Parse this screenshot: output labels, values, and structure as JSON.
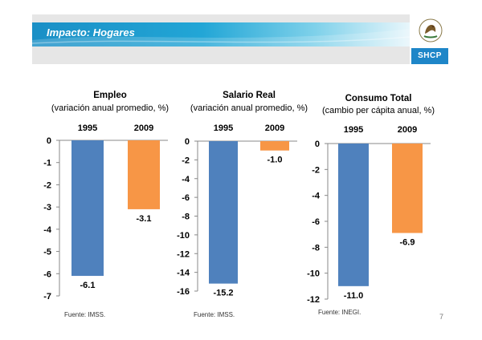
{
  "header": {
    "title": "Impacto: Hogares",
    "agency": "SHCP"
  },
  "page_number": "7",
  "colors": {
    "series_1995": "#4f81bd",
    "series_2009": "#f79646",
    "accent": "#1e86c8"
  },
  "chart_data": [
    {
      "type": "bar",
      "title": "Empleo",
      "subtitle": "(variación anual promedio, %)",
      "categories": [
        "1995",
        "2009"
      ],
      "values": [
        -6.1,
        -3.1
      ],
      "value_labels": [
        "-6.1",
        "-3.1"
      ],
      "ylim": [
        -7,
        0
      ],
      "yticks": [
        0,
        -1,
        -2,
        -3,
        -4,
        -5,
        -6,
        -7
      ],
      "ytick_labels": [
        "0",
        "-1",
        "-2",
        "-3",
        "-4",
        "-5",
        "-6",
        "-7"
      ],
      "source": "Fuente: IMSS.",
      "grid": false
    },
    {
      "type": "bar",
      "title": "Salario Real",
      "subtitle": "(variación anual promedio, %)",
      "categories": [
        "1995",
        "2009"
      ],
      "values": [
        -15.2,
        -1.0
      ],
      "value_labels": [
        "-15.2",
        "-1.0"
      ],
      "ylim": [
        -16,
        0
      ],
      "yticks": [
        0,
        -2,
        -4,
        -6,
        -8,
        -10,
        -12,
        -14,
        -16
      ],
      "ytick_labels": [
        "0",
        "-2",
        "-4",
        "-6",
        "-8",
        "-10",
        "-12",
        "-14",
        "-16"
      ],
      "source": "Fuente: IMSS.",
      "grid": false
    },
    {
      "type": "bar",
      "title": "Consumo Total",
      "subtitle": "(cambio per cápita anual, %)",
      "categories": [
        "1995",
        "2009"
      ],
      "values": [
        -11.0,
        -6.9
      ],
      "value_labels": [
        "-11.0",
        "-6.9"
      ],
      "ylim": [
        -12,
        0
      ],
      "yticks": [
        0,
        -2,
        -4,
        -6,
        -8,
        -10,
        -12
      ],
      "ytick_labels": [
        "0",
        "-2",
        "-4",
        "-6",
        "-8",
        "-10",
        "-12"
      ],
      "source": "Fuente: INEGI.",
      "grid": false
    }
  ]
}
